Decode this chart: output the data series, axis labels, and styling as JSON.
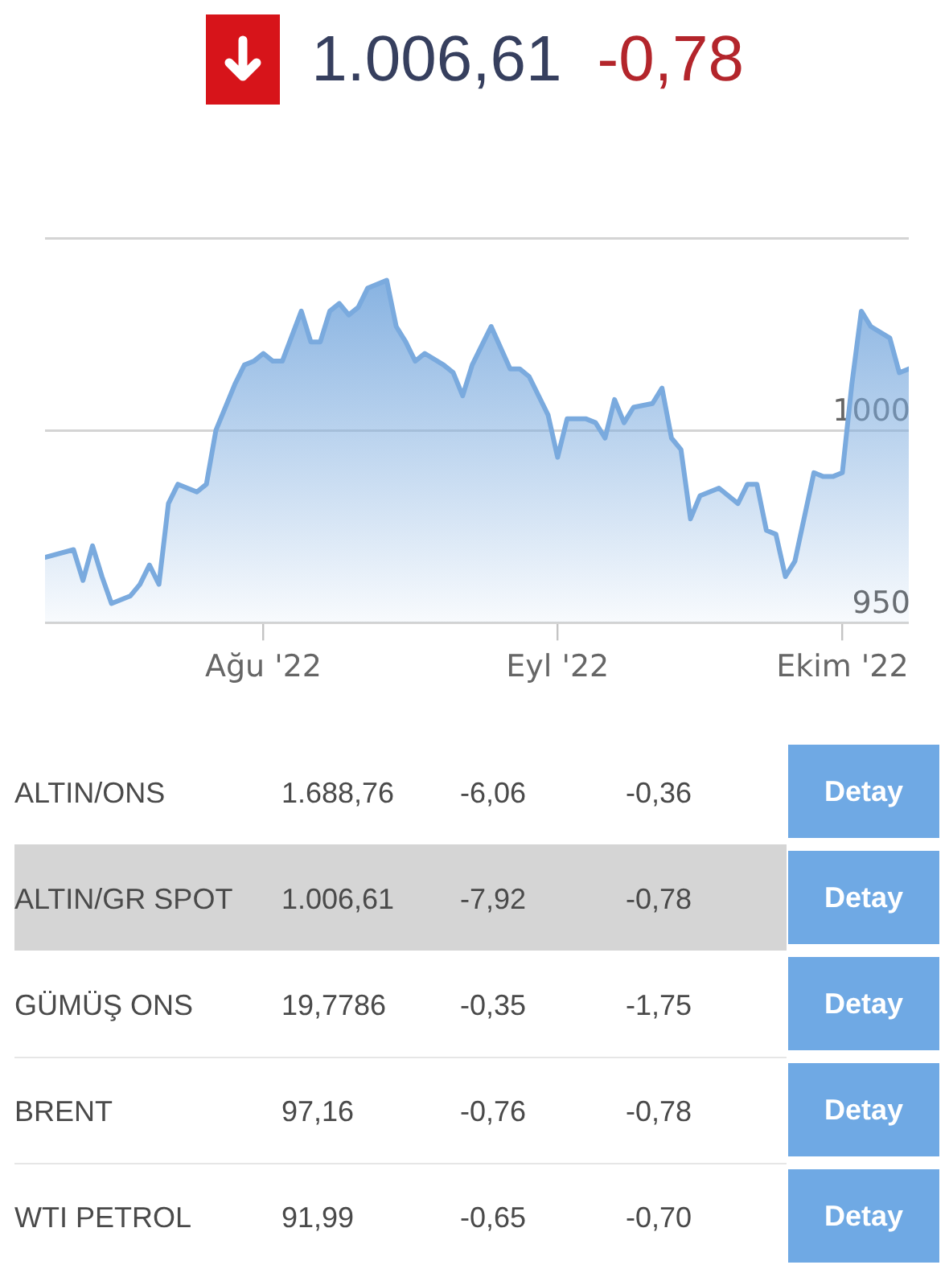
{
  "chart_data": [
    {
      "type": "area",
      "title": "1.006,61",
      "subtitle": "-0,78",
      "color": "#7aaade",
      "marker": "none",
      "grid": "y",
      "x": [
        "2022-07-09",
        "2022-07-12",
        "2022-07-13",
        "2022-07-14",
        "2022-07-15",
        "2022-07-16",
        "2022-07-18",
        "2022-07-19",
        "2022-07-20",
        "2022-07-21",
        "2022-07-22",
        "2022-07-23",
        "2022-07-24",
        "2022-07-25",
        "2022-07-26",
        "2022-07-27",
        "2022-07-29",
        "2022-07-30",
        "2022-07-31",
        "2022-08-01",
        "2022-08-02",
        "2022-08-03",
        "2022-08-05",
        "2022-08-06",
        "2022-08-07",
        "2022-08-08",
        "2022-08-09",
        "2022-08-10",
        "2022-08-11",
        "2022-08-12",
        "2022-08-14",
        "2022-08-15",
        "2022-08-16",
        "2022-08-17",
        "2022-08-18",
        "2022-08-20",
        "2022-08-21",
        "2022-08-22",
        "2022-08-23",
        "2022-08-24",
        "2022-08-25",
        "2022-08-27",
        "2022-08-28",
        "2022-08-29",
        "2022-08-31",
        "2022-09-01",
        "2022-09-02",
        "2022-09-04",
        "2022-09-05",
        "2022-09-06",
        "2022-09-07",
        "2022-09-08",
        "2022-09-09",
        "2022-09-11",
        "2022-09-12",
        "2022-09-13",
        "2022-09-14",
        "2022-09-15",
        "2022-09-16",
        "2022-09-17",
        "2022-09-18",
        "2022-09-20",
        "2022-09-21",
        "2022-09-22",
        "2022-09-23",
        "2022-09-24",
        "2022-09-25",
        "2022-09-26",
        "2022-09-28",
        "2022-09-29",
        "2022-09-30",
        "2022-10-01",
        "2022-10-02",
        "2022-10-03",
        "2022-10-04",
        "2022-10-06",
        "2022-10-07",
        "2022-10-08"
      ],
      "values": [
        967,
        969,
        961,
        970,
        962,
        955,
        957,
        960,
        965,
        960,
        981,
        986,
        985,
        984,
        986,
        1000,
        1012,
        1017,
        1018,
        1020,
        1018,
        1018,
        1031,
        1023,
        1023,
        1031,
        1033,
        1030,
        1032,
        1037,
        1039,
        1027,
        1023,
        1018,
        1020,
        1017,
        1015,
        1009,
        1017,
        1022,
        1027,
        1016,
        1016,
        1014,
        1004,
        993,
        1003,
        1003,
        1002,
        998,
        1008,
        1002,
        1006,
        1007,
        1011,
        998,
        995,
        977,
        983,
        984,
        985,
        981,
        986,
        986,
        974,
        973,
        962,
        966,
        989,
        988,
        988,
        989,
        1012,
        1031,
        1027,
        1024,
        1015,
        1016
      ],
      "xlim": [
        "2022-07-09",
        "2022-10-08"
      ],
      "xticks": [
        {
          "value": "2022-08-01",
          "label": "Ağu '22"
        },
        {
          "value": "2022-09-01",
          "label": "Eyl '22"
        },
        {
          "value": "2022-10-01",
          "label": "Ekim '22"
        }
      ],
      "ylim": [
        950,
        1050
      ],
      "yticks": [
        950,
        1000,
        {
          "value": 1050,
          "label": null
        }
      ]
    },
    {
      "type": "other",
      "annotations": [
        "ALTIN/ONS",
        "1.688,76",
        "-6,06",
        "-0,36",
        "Detay",
        "ALTIN/GR SPOT",
        "1.006,61",
        "-7,92",
        "-0,78",
        "Detay",
        "GÜMÜŞ ONS",
        "19,7786",
        "-0,35",
        "-1,75",
        "Detay",
        "BRENT",
        "97,16",
        "-0,76",
        "-0,78",
        "Detay",
        "WTI PETROL",
        "91,99",
        "-0,65",
        "-0,70",
        "Detay"
      ]
    }
  ]
}
